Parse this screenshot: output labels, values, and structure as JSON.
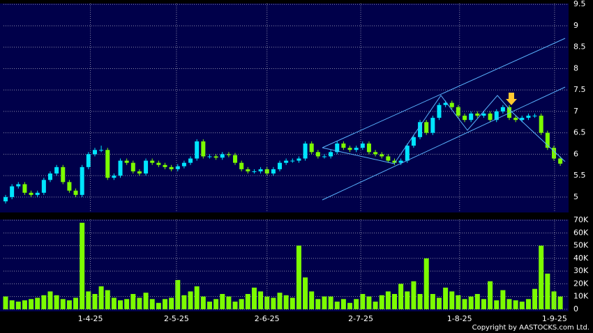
{
  "chart_data": [
    {
      "type": "candlestick",
      "open": [
        4.9,
        5.0,
        5.25,
        5.3,
        5.1,
        5.05,
        5.1,
        5.4,
        5.55,
        5.7,
        5.35,
        5.15,
        5.05,
        5.7,
        6.0,
        6.1,
        6.1,
        5.45,
        5.5,
        5.85,
        5.8,
        5.6,
        5.55,
        5.85,
        5.8,
        5.75,
        5.7,
        5.65,
        5.72,
        5.8,
        5.9,
        6.3,
        5.95,
        5.95,
        5.92,
        6.0,
        5.98,
        5.8,
        5.65,
        5.6,
        5.6,
        5.65,
        5.55,
        5.65,
        5.8,
        5.85,
        5.85,
        5.9,
        6.25,
        6.05,
        5.95,
        5.95,
        6.05,
        6.25,
        6.15,
        6.1,
        6.15,
        6.25,
        6.05,
        6.0,
        5.95,
        5.85,
        5.8,
        5.85,
        6.2,
        6.4,
        6.75,
        6.5,
        6.85,
        7.15,
        7.2,
        7.1,
        6.9,
        6.8,
        6.95,
        6.9,
        6.95,
        6.8,
        7.0,
        7.1,
        6.85,
        6.8,
        6.85,
        6.9,
        6.9,
        6.5,
        6.15,
        5.9
      ],
      "high": [
        5.05,
        5.3,
        5.35,
        5.35,
        5.15,
        5.15,
        5.45,
        5.6,
        5.75,
        5.75,
        5.4,
        5.2,
        5.75,
        6.05,
        6.15,
        6.2,
        6.15,
        5.55,
        5.9,
        5.9,
        5.85,
        5.65,
        5.9,
        5.9,
        5.85,
        5.8,
        5.75,
        5.77,
        5.85,
        5.95,
        6.35,
        6.35,
        6.0,
        6.0,
        6.05,
        6.05,
        6.03,
        5.85,
        5.7,
        5.65,
        5.7,
        5.7,
        5.7,
        5.85,
        5.9,
        5.9,
        5.95,
        6.3,
        6.3,
        6.1,
        6.0,
        6.1,
        6.3,
        6.3,
        6.2,
        6.2,
        6.3,
        6.3,
        6.1,
        6.05,
        6.0,
        5.9,
        5.9,
        6.25,
        6.45,
        6.8,
        6.8,
        6.9,
        7.2,
        7.25,
        7.25,
        7.15,
        6.95,
        7.0,
        7.0,
        7.0,
        7.0,
        7.05,
        7.15,
        7.15,
        6.9,
        6.9,
        6.95,
        6.95,
        6.95,
        6.55,
        6.2,
        5.95
      ],
      "low": [
        4.85,
        4.95,
        5.2,
        5.05,
        5.0,
        5.0,
        5.05,
        5.35,
        5.5,
        5.3,
        5.1,
        5.0,
        5.0,
        5.65,
        5.95,
        6.05,
        5.4,
        5.4,
        5.45,
        5.75,
        5.55,
        5.5,
        5.5,
        5.75,
        5.7,
        5.65,
        5.6,
        5.6,
        5.67,
        5.75,
        5.85,
        5.9,
        5.9,
        5.87,
        5.87,
        5.93,
        5.75,
        5.6,
        5.55,
        5.55,
        5.55,
        5.5,
        5.5,
        5.6,
        5.75,
        5.8,
        5.8,
        5.85,
        6.0,
        5.9,
        5.9,
        5.9,
        6.0,
        6.1,
        6.05,
        6.05,
        6.1,
        6.0,
        5.95,
        5.9,
        5.8,
        5.75,
        5.75,
        5.8,
        6.15,
        6.35,
        6.45,
        6.45,
        6.8,
        7.1,
        7.05,
        6.85,
        6.75,
        6.75,
        6.85,
        6.85,
        6.75,
        6.75,
        6.95,
        6.8,
        6.75,
        6.75,
        6.8,
        6.85,
        6.45,
        6.1,
        5.85,
        5.73
      ],
      "close": [
        5.0,
        5.25,
        5.3,
        5.1,
        5.05,
        5.1,
        5.4,
        5.55,
        5.7,
        5.35,
        5.15,
        5.05,
        5.7,
        6.0,
        6.1,
        6.1,
        5.45,
        5.5,
        5.85,
        5.8,
        5.6,
        5.55,
        5.85,
        5.8,
        5.75,
        5.7,
        5.65,
        5.72,
        5.8,
        5.9,
        6.3,
        5.95,
        5.95,
        5.92,
        6.0,
        5.98,
        5.8,
        5.65,
        5.6,
        5.6,
        5.65,
        5.55,
        5.65,
        5.8,
        5.85,
        5.85,
        5.9,
        6.25,
        6.05,
        5.95,
        5.95,
        6.05,
        6.25,
        6.15,
        6.1,
        6.15,
        6.25,
        6.05,
        6.0,
        5.95,
        5.85,
        5.8,
        5.85,
        6.2,
        6.4,
        6.75,
        6.5,
        6.85,
        7.15,
        7.2,
        7.1,
        6.9,
        6.8,
        6.95,
        6.9,
        6.95,
        6.8,
        7.0,
        7.1,
        6.85,
        6.8,
        6.85,
        6.9,
        6.9,
        6.5,
        6.15,
        5.9,
        5.78
      ],
      "up_color": "#00e5ff",
      "down_color": "#7cfc00",
      "xlim": [
        -0.33,
        88.3
      ],
      "ylim": [
        4.64,
        9.52
      ],
      "yticks": [
        5,
        5.5,
        6,
        6.5,
        7,
        7.5,
        8,
        8.5,
        9,
        9.5
      ],
      "grid": true
    },
    {
      "type": "bar",
      "values": [
        10000,
        7000,
        6000,
        7000,
        8000,
        9000,
        11000,
        14000,
        11000,
        8000,
        7000,
        9000,
        68000,
        14000,
        12000,
        18000,
        15000,
        9000,
        7000,
        8000,
        12000,
        9000,
        13000,
        8000,
        5000,
        8000,
        9000,
        23000,
        11000,
        14000,
        18000,
        10000,
        6000,
        8000,
        12000,
        10000,
        6000,
        8000,
        12000,
        17000,
        14000,
        10000,
        9000,
        13000,
        11000,
        9000,
        50000,
        25000,
        14000,
        8000,
        10000,
        10000,
        6000,
        8000,
        5000,
        8000,
        12000,
        10000,
        6000,
        11000,
        14000,
        12000,
        20000,
        14000,
        22000,
        12000,
        40000,
        12000,
        9000,
        17000,
        14000,
        11000,
        8000,
        10000,
        12000,
        8000,
        22000,
        7000,
        15000,
        8000,
        7000,
        6000,
        8000,
        16000,
        50000,
        28000,
        14000,
        10000
      ],
      "color": "#7cfc00",
      "xlim": [
        -0.33,
        88.3
      ],
      "xticks": [
        {
          "value": 13.3,
          "label": "1-4-25"
        },
        {
          "value": 26.8,
          "label": "2-5-25"
        },
        {
          "value": 41,
          "label": "2-6-25"
        },
        {
          "value": 55.7,
          "label": "2-7-25"
        },
        {
          "value": 71.2,
          "label": "1-8-25"
        },
        {
          "value": 86.1,
          "label": "1-9-25"
        }
      ],
      "ylim": [
        -1700,
        70600
      ],
      "yticks": [
        0,
        {
          "value": 10000,
          "label": "10K"
        },
        {
          "value": 20000,
          "label": "20K"
        },
        {
          "value": 30000,
          "label": "30K"
        },
        {
          "value": 40000,
          "label": "40K"
        },
        {
          "value": 50000,
          "label": "50K"
        },
        {
          "value": 60000,
          "label": "60K"
        },
        {
          "value": 70000,
          "label": "70K"
        }
      ],
      "grid": true,
      "copyright": "Copyright by AASTOCKS.com Ltd."
    }
  ]
}
